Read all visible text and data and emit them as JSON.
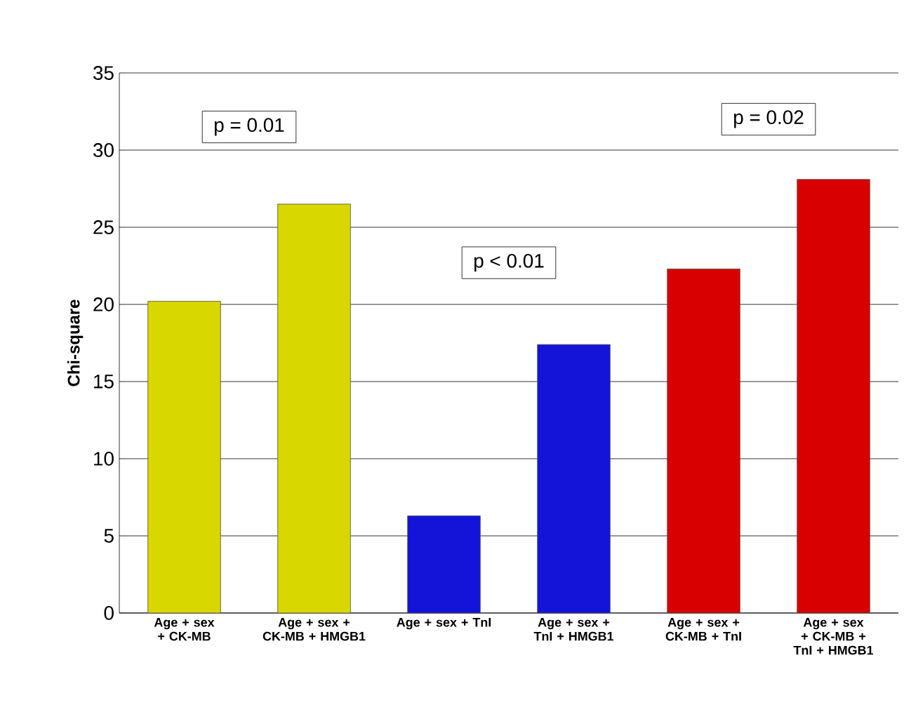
{
  "chart_data": {
    "type": "bar",
    "ylabel": "Chi-square",
    "categories": [
      "Age + sex + CK-MB",
      "Age + sex + CK-MB + HMGB1",
      "Age + sex + TnI",
      "Age + sex + TnI + HMGB1",
      "Age + sex + CK-MB + TnI",
      "Age + sex + CK-MB + TnI + HMGB1"
    ],
    "values": [
      20.2,
      26.5,
      6.3,
      17.4,
      22.3,
      28.1
    ],
    "colors": [
      "#d8d800",
      "#d8d800",
      "#1414d8",
      "#1414d8",
      "#d80000",
      "#d80000"
    ],
    "ylim": [
      0,
      35
    ],
    "yticks": [
      0,
      5,
      10,
      15,
      20,
      25,
      30,
      35
    ],
    "grid": "y",
    "annotations": [
      "p = 0.01",
      "p < 0.01",
      "p = 0.02"
    ]
  }
}
